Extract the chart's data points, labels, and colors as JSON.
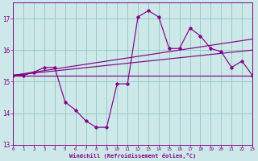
{
  "bg_color": "#cce8e8",
  "grid_color": "#99cccc",
  "line_color": "#880088",
  "x_min": 0,
  "x_max": 23,
  "y_min": 13,
  "y_max": 17.5,
  "yticks": [
    13,
    14,
    15,
    16,
    17
  ],
  "xticks": [
    0,
    1,
    2,
    3,
    4,
    5,
    6,
    7,
    8,
    9,
    10,
    11,
    12,
    13,
    14,
    15,
    16,
    17,
    18,
    19,
    20,
    21,
    22,
    23
  ],
  "xlabel": "Windchill (Refroidissement éolien,°C)",
  "jagged_x": [
    0,
    1,
    2,
    3,
    4,
    5,
    6,
    7,
    8,
    9,
    10,
    11,
    12,
    13,
    14,
    15,
    16,
    17,
    18,
    19,
    20,
    21,
    22,
    23
  ],
  "jagged_y": [
    15.2,
    15.2,
    15.3,
    15.45,
    15.45,
    14.35,
    14.1,
    13.75,
    13.55,
    13.55,
    14.93,
    14.93,
    17.05,
    17.25,
    17.05,
    16.05,
    16.05,
    16.7,
    16.45,
    16.05,
    15.95,
    15.45,
    15.65,
    15.2
  ],
  "line1_x": [
    0,
    23
  ],
  "line1_y": [
    15.2,
    16.35
  ],
  "line2_x": [
    0,
    23
  ],
  "line2_y": [
    15.2,
    16.0
  ],
  "line3_x": [
    0,
    23
  ],
  "line3_y": [
    15.2,
    15.2
  ]
}
